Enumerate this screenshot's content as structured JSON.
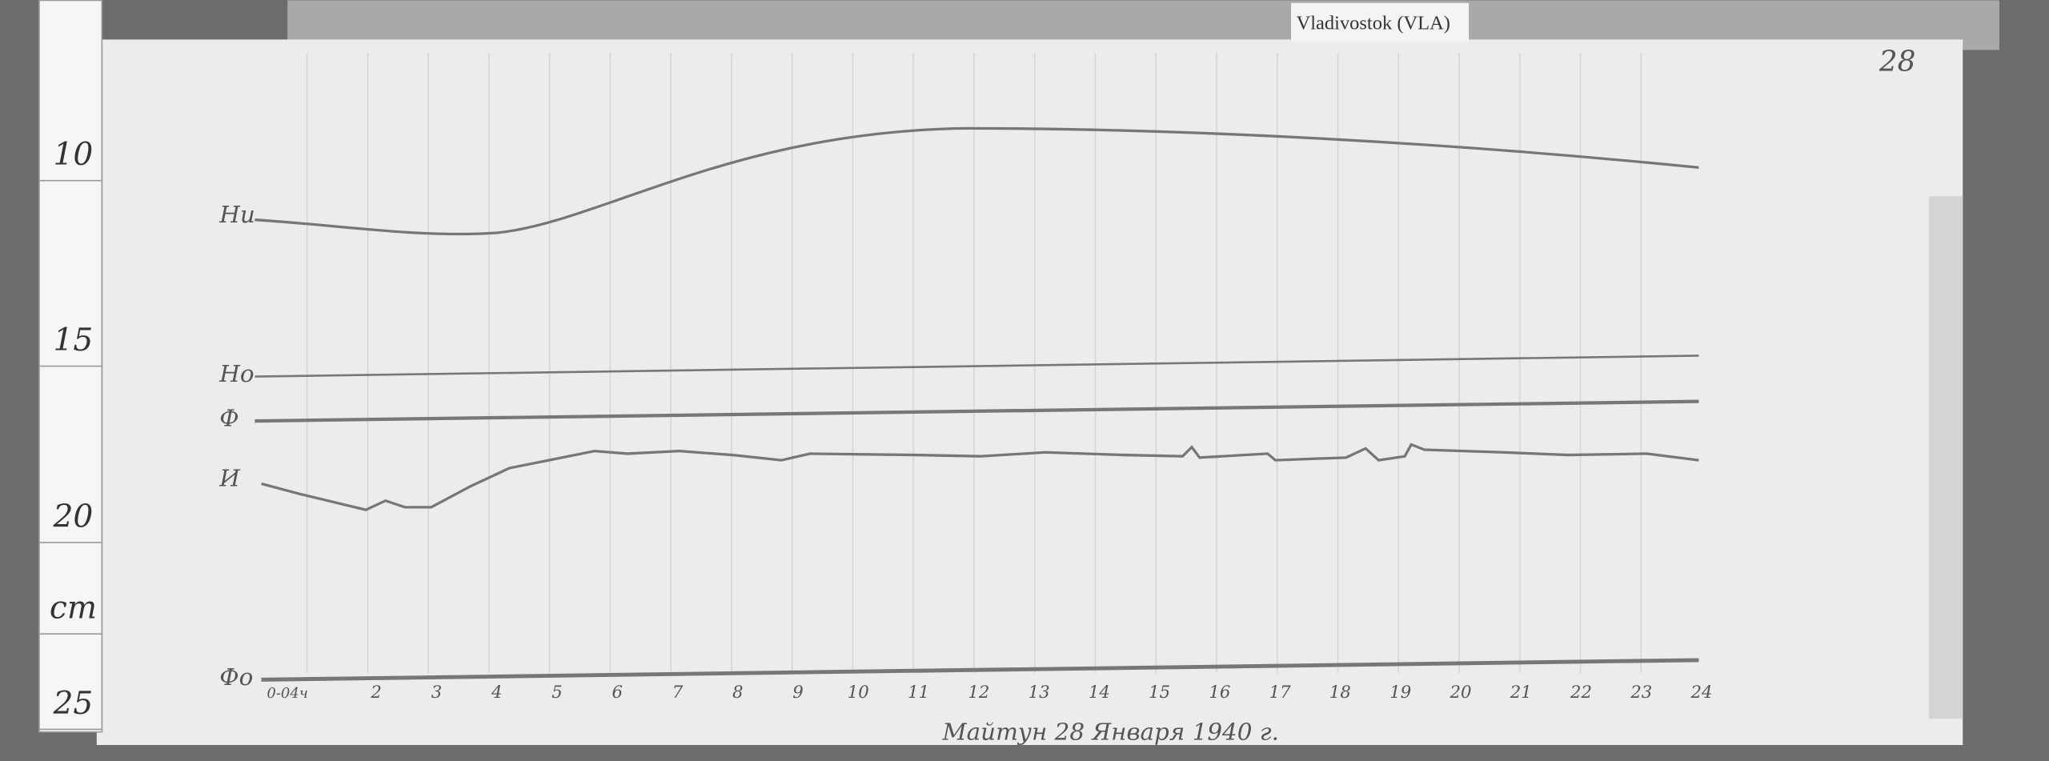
{
  "header": {
    "tag": "Vladivostok (VLA)",
    "page_number": "28"
  },
  "ruler": {
    "labels": [
      "10",
      "15",
      "20",
      "cm",
      "25"
    ]
  },
  "traces": [
    {
      "label": "Hи"
    },
    {
      "label": "Ho"
    },
    {
      "label": "Ф"
    },
    {
      "label": "И"
    },
    {
      "label": "Фо"
    }
  ],
  "hours": [
    "0-04ч",
    "2",
    "3",
    "4",
    "5",
    "6",
    "7",
    "8",
    "9",
    "10",
    "11",
    "12",
    "13",
    "14",
    "15",
    "16",
    "17",
    "18",
    "19",
    "20",
    "21",
    "22",
    "23",
    "24"
  ],
  "caption": "Майтун 28 Января 1940 г."
}
